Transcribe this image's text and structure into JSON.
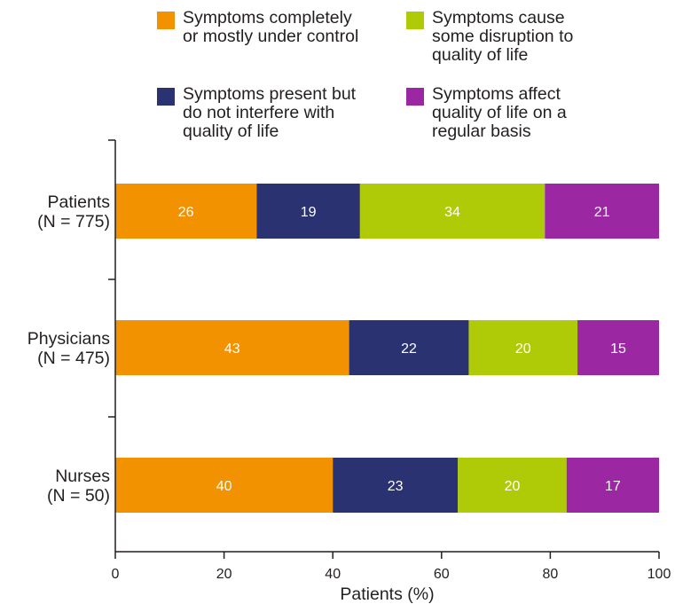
{
  "chart_data": {
    "type": "bar",
    "orientation": "horizontal",
    "stacked": true,
    "categories": [
      [
        "Patients",
        "(N = 775)"
      ],
      [
        "Physicians",
        "(N = 475)"
      ],
      [
        "Nurses",
        "(N = 50)"
      ]
    ],
    "series": [
      {
        "name": "Symptoms completely\nor mostly under control",
        "color": "#f39200",
        "values": [
          26,
          43,
          40
        ]
      },
      {
        "name": "Symptoms present but\ndo not interfere with\nquality of life",
        "color": "#2b3272",
        "values": [
          19,
          22,
          23
        ]
      },
      {
        "name": "Symptoms cause\nsome disruption to\nquality of life",
        "color": "#afcb08",
        "values": [
          34,
          20,
          20
        ]
      },
      {
        "name": "Symptoms affect\nquality of life on a\nregular basis",
        "color": "#9c27a3",
        "values": [
          21,
          15,
          17
        ]
      }
    ],
    "xlabel": "Patients (%)",
    "xlim": [
      0,
      100
    ],
    "xticks": [
      0,
      20,
      40,
      60,
      80,
      100
    ],
    "legend_position": "top",
    "grid": false
  }
}
